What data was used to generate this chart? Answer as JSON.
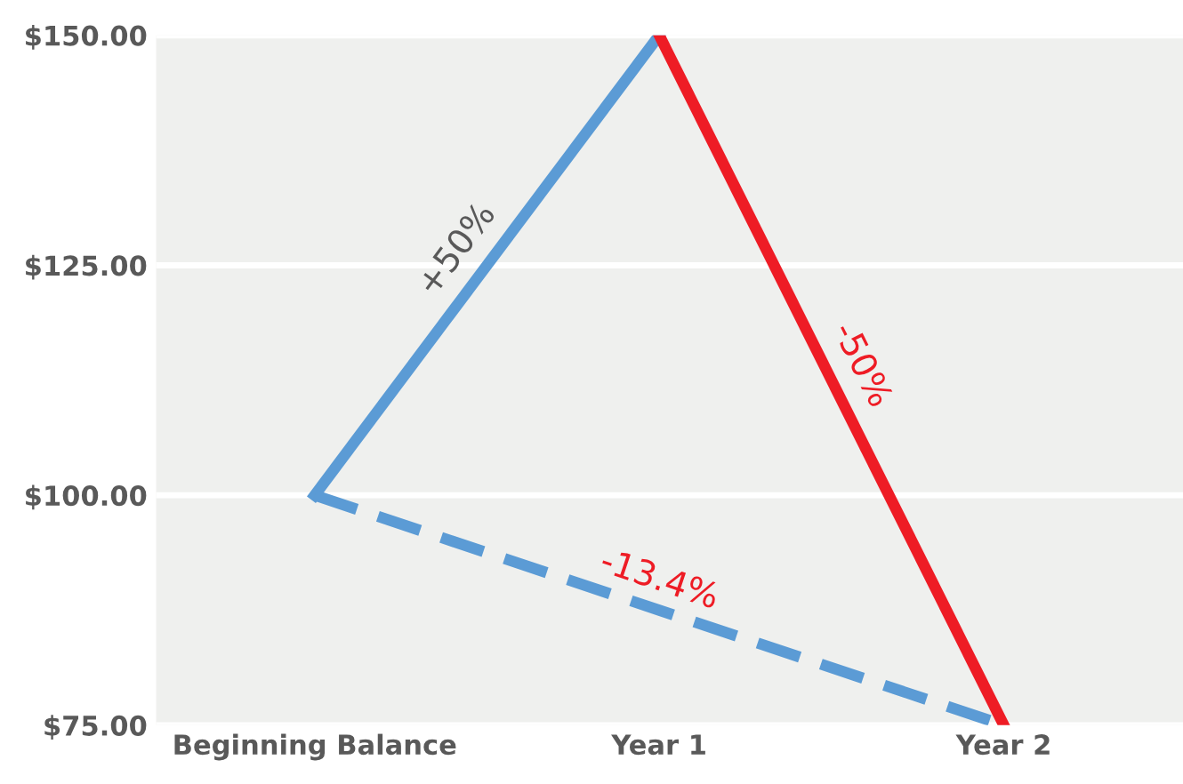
{
  "chart_data": {
    "type": "line",
    "categories": [
      "Beginning Balance",
      "Year 1",
      "Year 2"
    ],
    "series": [
      {
        "color": "#5b9bd5",
        "values": [
          100,
          150,
          null
        ],
        "line_style": "solid"
      },
      {
        "color": "#ee1c25",
        "values": [
          null,
          150,
          75
        ],
        "line_style": "solid"
      },
      {
        "color": "#5b9bd5",
        "values": [
          100,
          87.5,
          75
        ],
        "line_style": "dashed"
      }
    ],
    "ylim": [
      75,
      150
    ],
    "yticks": [
      {
        "value": 75,
        "label": "$75.00"
      },
      {
        "value": 100,
        "label": "$100.00"
      },
      {
        "value": 125,
        "label": "$125.00"
      },
      {
        "value": 150,
        "label": "$150.00"
      }
    ],
    "annotations": [
      "+50%",
      "-50%",
      "-13.4%"
    ],
    "grid": "y",
    "legend": false,
    "marker": "none"
  }
}
